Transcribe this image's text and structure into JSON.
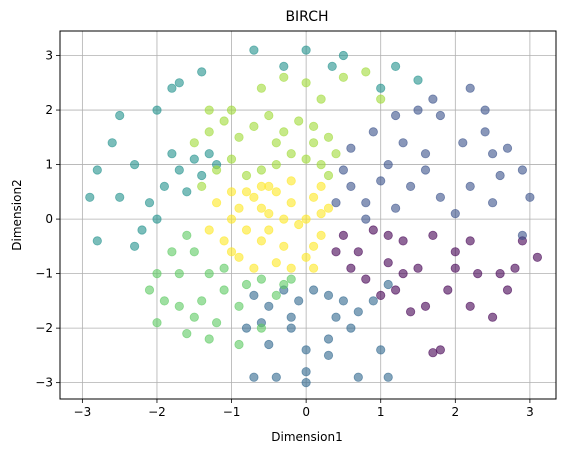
{
  "chart_data": {
    "type": "scatter",
    "title": "BIRCH",
    "xlabel": "Dimension1",
    "ylabel": "Dimension2",
    "xlim": [
      -3.3,
      3.35
    ],
    "ylim": [
      -3.3,
      3.45
    ],
    "x_ticks": [
      -3,
      -2,
      -1,
      0,
      1,
      2,
      3
    ],
    "y_ticks": [
      -3,
      -2,
      -1,
      0,
      1,
      2,
      3
    ],
    "grid": true,
    "legend": "none",
    "marker_alpha": 0.6,
    "series": [
      {
        "color": "#fde725",
        "points": [
          [
            -1.0,
            0.0
          ],
          [
            -0.9,
            0.2
          ],
          [
            -0.8,
            -0.2
          ],
          [
            -0.7,
            0.4
          ],
          [
            -0.6,
            -0.4
          ],
          [
            -0.5,
            0.1
          ],
          [
            -0.4,
            0.5
          ],
          [
            -0.3,
            -0.5
          ],
          [
            -0.2,
            0.3
          ],
          [
            -0.1,
            -0.1
          ],
          [
            0.0,
            0.0
          ],
          [
            0.1,
            0.4
          ],
          [
            0.2,
            -0.3
          ],
          [
            -0.6,
            0.6
          ],
          [
            -0.8,
            0.5
          ],
          [
            -1.1,
            -0.4
          ],
          [
            -1.2,
            0.3
          ],
          [
            -0.9,
            -0.7
          ],
          [
            -0.4,
            -0.8
          ],
          [
            0.0,
            -0.7
          ],
          [
            0.1,
            -0.9
          ],
          [
            -0.2,
            0.7
          ],
          [
            0.2,
            0.6
          ],
          [
            -0.7,
            -0.9
          ],
          [
            -1.0,
            -0.6
          ],
          [
            -1.3,
            -0.2
          ],
          [
            -0.3,
            0.0
          ],
          [
            -0.5,
            -0.2
          ],
          [
            0.2,
            0.1
          ],
          [
            -0.6,
            0.2
          ],
          [
            -1.0,
            0.5
          ],
          [
            0.1,
            -0.5
          ],
          [
            -0.2,
            -0.9
          ],
          [
            -0.5,
            0.6
          ],
          [
            0.3,
            0.2
          ]
        ]
      },
      {
        "color": "#440154",
        "points": [
          [
            0.5,
            -0.3
          ],
          [
            0.7,
            -0.6
          ],
          [
            0.9,
            -0.2
          ],
          [
            1.1,
            -0.8
          ],
          [
            1.3,
            -0.4
          ],
          [
            1.5,
            -0.9
          ],
          [
            1.7,
            -0.3
          ],
          [
            2.0,
            -0.6
          ],
          [
            2.3,
            -1.0
          ],
          [
            2.6,
            -1.0
          ],
          [
            2.8,
            -0.9
          ],
          [
            3.1,
            -0.7
          ],
          [
            1.6,
            -1.6
          ],
          [
            1.9,
            -1.3
          ],
          [
            2.2,
            -1.6
          ],
          [
            2.5,
            -1.8
          ],
          [
            1.8,
            -2.4
          ],
          [
            1.7,
            -2.45
          ],
          [
            2.2,
            -0.4
          ],
          [
            0.6,
            -0.9
          ],
          [
            0.8,
            -1.1
          ],
          [
            1.0,
            -1.4
          ],
          [
            1.2,
            -1.3
          ],
          [
            1.4,
            -1.7
          ],
          [
            1.1,
            -0.3
          ],
          [
            2.7,
            -1.3
          ],
          [
            2.9,
            -0.4
          ],
          [
            0.4,
            -0.6
          ],
          [
            1.3,
            -1.0
          ],
          [
            2.0,
            -0.9
          ]
        ]
      },
      {
        "color": "#3b528b",
        "points": [
          [
            0.4,
            0.3
          ],
          [
            0.6,
            0.6
          ],
          [
            0.8,
            0.3
          ],
          [
            1.0,
            0.7
          ],
          [
            1.2,
            0.2
          ],
          [
            1.4,
            0.6
          ],
          [
            1.6,
            0.9
          ],
          [
            1.8,
            0.4
          ],
          [
            2.0,
            0.1
          ],
          [
            2.2,
            0.6
          ],
          [
            2.5,
            0.3
          ],
          [
            2.6,
            0.8
          ],
          [
            2.9,
            0.9
          ],
          [
            3.0,
            0.4
          ],
          [
            2.9,
            -0.3
          ],
          [
            2.7,
            1.3
          ],
          [
            2.4,
            1.6
          ],
          [
            2.1,
            1.4
          ],
          [
            1.8,
            1.9
          ],
          [
            1.5,
            2.0
          ],
          [
            1.2,
            1.9
          ],
          [
            0.9,
            1.6
          ],
          [
            0.6,
            1.3
          ],
          [
            2.2,
            2.4
          ],
          [
            2.4,
            2.0
          ],
          [
            1.7,
            2.2
          ],
          [
            1.1,
            1.0
          ],
          [
            1.3,
            1.4
          ],
          [
            0.5,
            0.9
          ],
          [
            0.8,
            0.0
          ],
          [
            1.6,
            1.2
          ],
          [
            2.5,
            1.2
          ]
        ]
      },
      {
        "color": "#31688e",
        "points": [
          [
            -0.7,
            -1.4
          ],
          [
            -0.5,
            -1.6
          ],
          [
            -0.3,
            -1.3
          ],
          [
            -0.1,
            -1.5
          ],
          [
            0.1,
            -1.3
          ],
          [
            0.3,
            -1.4
          ],
          [
            0.5,
            -1.5
          ],
          [
            0.7,
            -1.7
          ],
          [
            0.9,
            -1.5
          ],
          [
            1.1,
            -1.2
          ],
          [
            -0.2,
            -2.0
          ],
          [
            0.0,
            -2.4
          ],
          [
            0.3,
            -2.2
          ],
          [
            -0.5,
            -2.3
          ],
          [
            -0.8,
            -2.0
          ],
          [
            0.6,
            -2.0
          ],
          [
            0.3,
            -2.5
          ],
          [
            0.0,
            -2.8
          ],
          [
            -0.4,
            -2.9
          ],
          [
            -0.7,
            -2.9
          ],
          [
            0.0,
            -3.0
          ],
          [
            0.7,
            -2.9
          ],
          [
            1.1,
            -2.9
          ],
          [
            1.0,
            -2.4
          ],
          [
            -0.2,
            -1.8
          ],
          [
            0.4,
            -1.8
          ],
          [
            -0.6,
            -1.9
          ]
        ]
      },
      {
        "color": "#21918c",
        "points": [
          [
            -1.5,
            1.1
          ],
          [
            -1.7,
            0.9
          ],
          [
            -1.9,
            0.6
          ],
          [
            -2.1,
            0.3
          ],
          [
            -1.8,
            1.2
          ],
          [
            -1.4,
            0.8
          ],
          [
            -1.6,
            0.5
          ],
          [
            -2.2,
            -0.2
          ],
          [
            -2.3,
            -0.5
          ],
          [
            -2.0,
            0.0
          ],
          [
            -2.5,
            0.4
          ],
          [
            -2.8,
            0.9
          ],
          [
            -2.9,
            0.4
          ],
          [
            -2.8,
            -0.4
          ],
          [
            -2.5,
            1.9
          ],
          [
            -2.0,
            2.0
          ],
          [
            -1.8,
            2.4
          ],
          [
            -1.7,
            2.5
          ],
          [
            -1.4,
            2.7
          ],
          [
            -0.7,
            3.1
          ],
          [
            -0.3,
            2.8
          ],
          [
            0.0,
            3.1
          ],
          [
            0.35,
            2.8
          ],
          [
            0.5,
            3.0
          ],
          [
            1.2,
            2.8
          ],
          [
            1.5,
            2.55
          ],
          [
            1.0,
            2.4
          ],
          [
            -1.3,
            1.2
          ],
          [
            -1.2,
            1.0
          ],
          [
            -2.6,
            1.4
          ],
          [
            -2.3,
            1.0
          ]
        ]
      },
      {
        "color": "#5ec962",
        "points": [
          [
            -1.6,
            -0.3
          ],
          [
            -1.8,
            -0.6
          ],
          [
            -2.0,
            -1.0
          ],
          [
            -1.7,
            -1.0
          ],
          [
            -1.5,
            -0.6
          ],
          [
            -1.3,
            -1.0
          ],
          [
            -1.1,
            -1.3
          ],
          [
            -1.4,
            -1.5
          ],
          [
            -1.7,
            -1.6
          ],
          [
            -2.0,
            -1.9
          ],
          [
            -1.6,
            -2.1
          ],
          [
            -1.2,
            -1.9
          ],
          [
            -0.9,
            -1.6
          ],
          [
            -0.6,
            -1.1
          ],
          [
            -0.2,
            -1.1
          ],
          [
            -0.4,
            -1.4
          ],
          [
            -0.9,
            -2.3
          ],
          [
            -0.6,
            -2.0
          ],
          [
            -1.1,
            -0.9
          ],
          [
            -0.3,
            -1.2
          ],
          [
            -2.1,
            -1.3
          ],
          [
            -1.9,
            -1.5
          ],
          [
            -1.5,
            -1.8
          ],
          [
            -1.3,
            -2.2
          ],
          [
            -0.8,
            -1.2
          ]
        ]
      },
      {
        "color": "#a0da39",
        "points": [
          [
            -1.3,
            1.6
          ],
          [
            -1.1,
            1.8
          ],
          [
            -0.9,
            1.5
          ],
          [
            -0.7,
            1.7
          ],
          [
            -0.5,
            1.9
          ],
          [
            -0.3,
            1.6
          ],
          [
            -0.1,
            1.8
          ],
          [
            0.1,
            1.7
          ],
          [
            0.3,
            1.5
          ],
          [
            0.4,
            1.2
          ],
          [
            0.2,
            1.0
          ],
          [
            0.0,
            1.1
          ],
          [
            -0.2,
            1.2
          ],
          [
            -0.4,
            1.0
          ],
          [
            -0.6,
            0.9
          ],
          [
            -0.8,
            0.8
          ],
          [
            -1.0,
            1.1
          ],
          [
            -1.2,
            0.9
          ],
          [
            -1.5,
            1.4
          ],
          [
            -1.3,
            2.0
          ],
          [
            -1.0,
            2.0
          ],
          [
            -0.6,
            2.4
          ],
          [
            -0.3,
            2.6
          ],
          [
            0.0,
            2.5
          ],
          [
            0.2,
            2.2
          ],
          [
            -0.4,
            1.4
          ],
          [
            0.3,
            0.8
          ],
          [
            -1.4,
            0.6
          ],
          [
            0.5,
            2.6
          ],
          [
            0.8,
            2.7
          ],
          [
            1.0,
            2.2
          ],
          [
            0.1,
            1.4
          ]
        ]
      }
    ]
  }
}
